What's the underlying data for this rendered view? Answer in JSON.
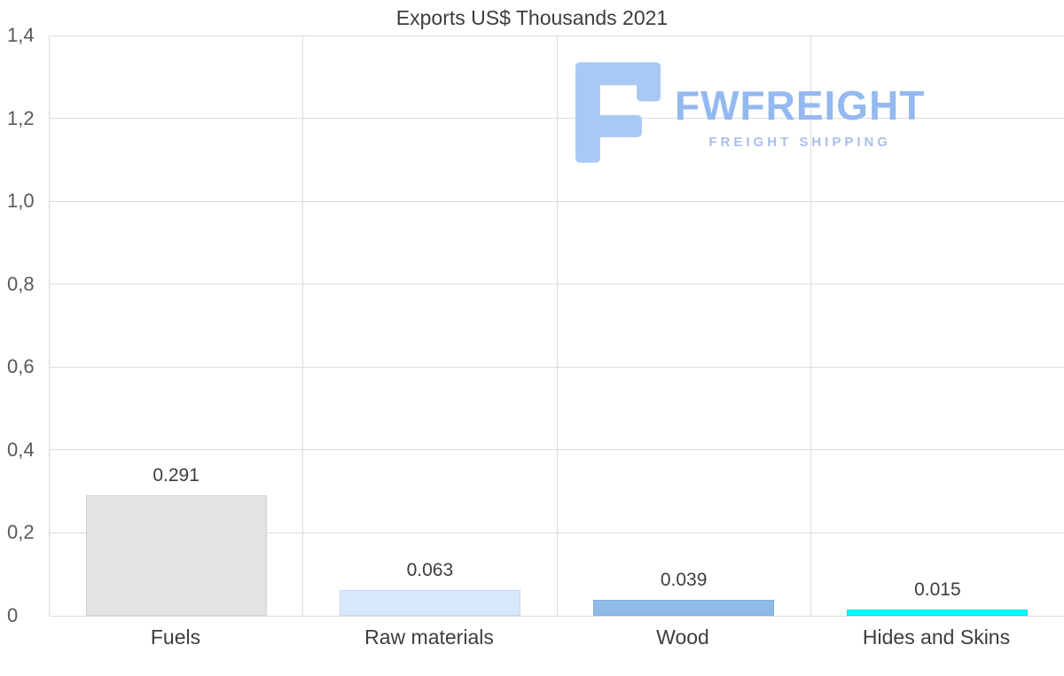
{
  "page": {
    "background": "#ffffff"
  },
  "chart_data": {
    "type": "bar",
    "title": "Exports US$ Thousands 2021",
    "categories": [
      "Fuels",
      "Raw materials",
      "Wood",
      "Hides and Skins"
    ],
    "values": [
      0.291,
      0.063,
      0.039,
      0.015
    ],
    "value_labels": [
      "0.291",
      "0.063",
      "0.039",
      "0.015"
    ],
    "bar_colors": [
      "#e3e3e3",
      "#d8e8fc",
      "#8fbbe8",
      "#00ffff"
    ],
    "bar_border_colors": [
      "#d2d2d2",
      "#c4daf6",
      "#7dafe3",
      "#00e2ea"
    ],
    "xlabel": "",
    "ylabel": "",
    "ylim": [
      0,
      1.4
    ],
    "ytick_step": 0.2,
    "ytick_labels": [
      "0",
      "0,2",
      "0,4",
      "0,6",
      "0,8",
      "1,0",
      "1,2",
      "1,4"
    ],
    "grid": true,
    "legend": "none"
  },
  "watermark": {
    "brand": "FWFREIGHT",
    "tagline": "FREIGHT SHIPPING",
    "brand_color": "#94b9f0",
    "icon_color": "#a9c8f3",
    "icon": "fwfreight-logo-icon"
  }
}
